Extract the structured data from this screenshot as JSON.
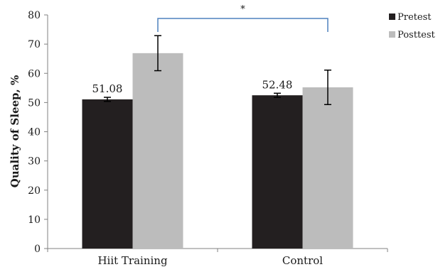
{
  "chart_data": {
    "type": "bar",
    "ylabel": "Quality of Sleep, %",
    "ylim": [
      0,
      80
    ],
    "yticks": [
      0,
      10,
      20,
      30,
      40,
      50,
      60,
      70,
      80
    ],
    "categories": [
      "Hiit Training",
      "Control"
    ],
    "series": [
      {
        "name": "Pretest",
        "color": "#231f20",
        "values": [
          51.08,
          52.48
        ],
        "errors": [
          0.7,
          0.7
        ],
        "data_labels": [
          "51.08",
          "52.48"
        ]
      },
      {
        "name": "Posttest",
        "color": "#bcbcbc",
        "values": [
          66.9,
          55.2
        ],
        "errors": [
          6.0,
          5.9
        ]
      }
    ],
    "significance": {
      "label": "*",
      "color": "#4f81bd"
    },
    "legend": "top-right",
    "grid": false
  }
}
